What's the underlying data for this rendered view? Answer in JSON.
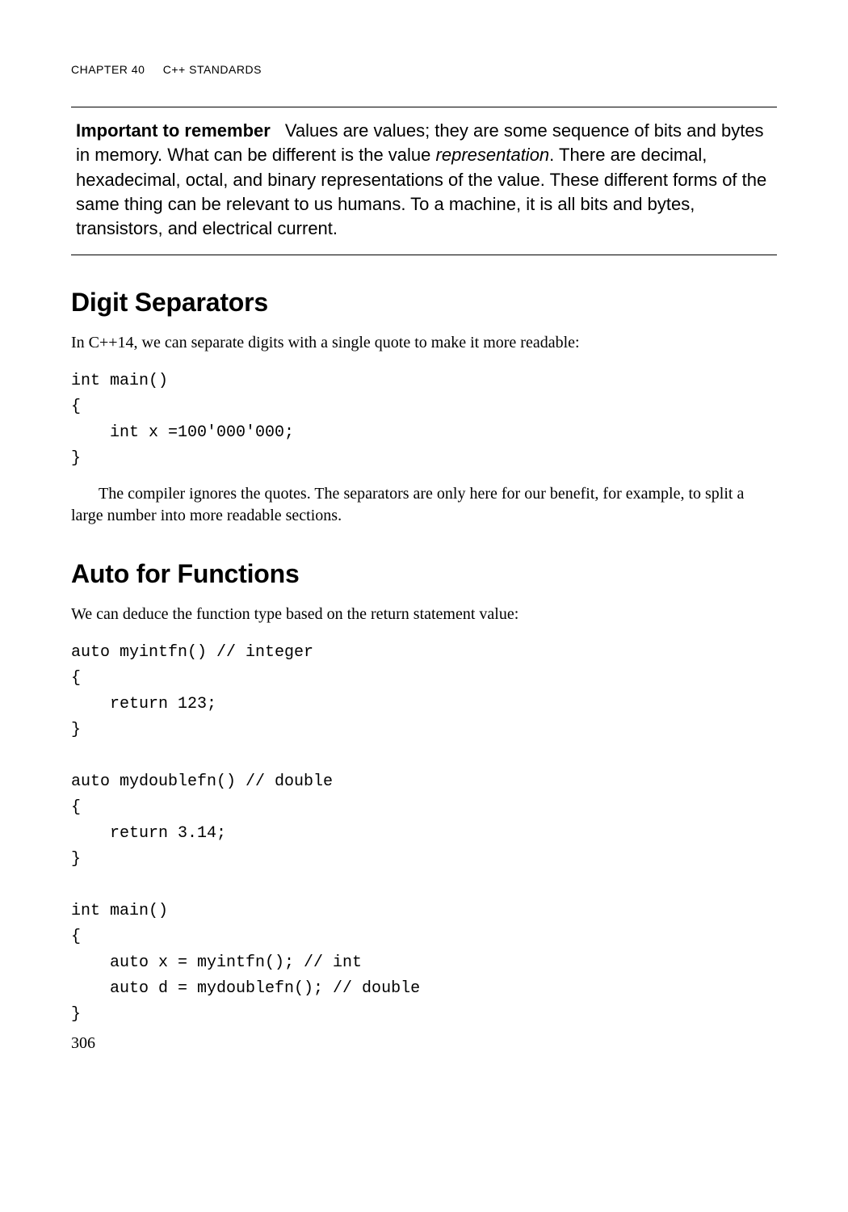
{
  "header": {
    "chapLabel": "CHAPTER 40",
    "chapTitle": "C++ STANDARDS"
  },
  "callout": {
    "lead": "Important to remember",
    "textPrefix": "Values are values; they are some sequence of bits and bytes in memory. What can be different is the value ",
    "italic": "representation",
    "textSuffix": ". There are decimal, hexadecimal, octal, and binary representations of the value. These different forms of the same thing can be relevant to us humans. To a machine, it is all bits and bytes, transistors, and electrical current."
  },
  "section1": {
    "heading": "Digit Separators",
    "intro": "In C++14, we can separate digits with a single quote to make it more readable:",
    "code": "int main()\n{\n    int x =100'000'000;\n}",
    "outro": "The compiler ignores the quotes. The separators are only here for our benefit, for example, to split a large number into more readable sections."
  },
  "section2": {
    "heading": "Auto for Functions",
    "intro": "We can deduce the function type based on the return statement value:",
    "code": "auto myintfn() // integer\n{\n    return 123;\n}\n\nauto mydoublefn() // double\n{\n    return 3.14;\n}\n\nint main()\n{\n    auto x = myintfn(); // int\n    auto d = mydoublefn(); // double\n}"
  },
  "pageNumber": "306"
}
